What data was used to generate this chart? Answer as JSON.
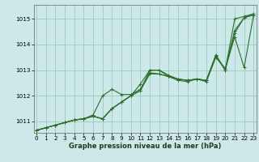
{
  "bg_color": "#cce8e8",
  "grid_color": "#99ccbb",
  "line_color": "#2d6e2d",
  "xlabel": "Graphe pression niveau de la mer (hPa)",
  "xlim": [
    -0.3,
    23.3
  ],
  "ylim": [
    1010.55,
    1015.55
  ],
  "yticks": [
    1011,
    1012,
    1013,
    1014,
    1015
  ],
  "xticks": [
    0,
    1,
    2,
    3,
    4,
    5,
    6,
    7,
    8,
    9,
    10,
    11,
    12,
    13,
    14,
    15,
    16,
    17,
    18,
    19,
    20,
    21,
    22,
    23
  ],
  "series": [
    [
      1010.65,
      1010.75,
      1010.85,
      1010.95,
      1011.05,
      1011.1,
      1011.2,
      1011.1,
      1011.5,
      1011.75,
      1012.0,
      1012.2,
      1013.0,
      1013.0,
      1012.8,
      1012.65,
      1012.6,
      1012.65,
      1012.6,
      1013.6,
      1013.0,
      1015.0,
      1015.1,
      1015.2
    ],
    [
      1010.65,
      1010.75,
      1010.85,
      1010.95,
      1011.05,
      1011.1,
      1011.2,
      1011.1,
      1011.5,
      1011.75,
      1012.0,
      1012.2,
      1012.85,
      1012.85,
      1012.75,
      1012.65,
      1012.6,
      1012.65,
      1012.6,
      1013.55,
      1013.0,
      1014.45,
      1015.05,
      1015.15
    ],
    [
      1010.65,
      1010.75,
      1010.85,
      1010.95,
      1011.05,
      1011.1,
      1011.25,
      1012.0,
      1012.25,
      1012.05,
      1012.05,
      1012.25,
      1012.9,
      1012.85,
      1012.75,
      1012.6,
      1012.55,
      1012.65,
      1012.55,
      1013.5,
      1013.05,
      1014.3,
      1013.1,
      1015.15
    ],
    [
      1010.65,
      1010.75,
      1010.85,
      1010.95,
      1011.05,
      1011.1,
      1011.2,
      1011.1,
      1011.5,
      1011.75,
      1012.0,
      1012.45,
      1013.0,
      1013.0,
      1012.75,
      1012.65,
      1012.6,
      1012.65,
      1012.6,
      1013.55,
      1013.05,
      1014.55,
      1015.05,
      1015.2
    ]
  ],
  "ylabel_fontsize": 5.5,
  "xlabel_fontsize": 6,
  "tick_fontsize": 5.2,
  "linewidth": 0.8,
  "markersize": 2.5,
  "markeredgewidth": 0.7
}
